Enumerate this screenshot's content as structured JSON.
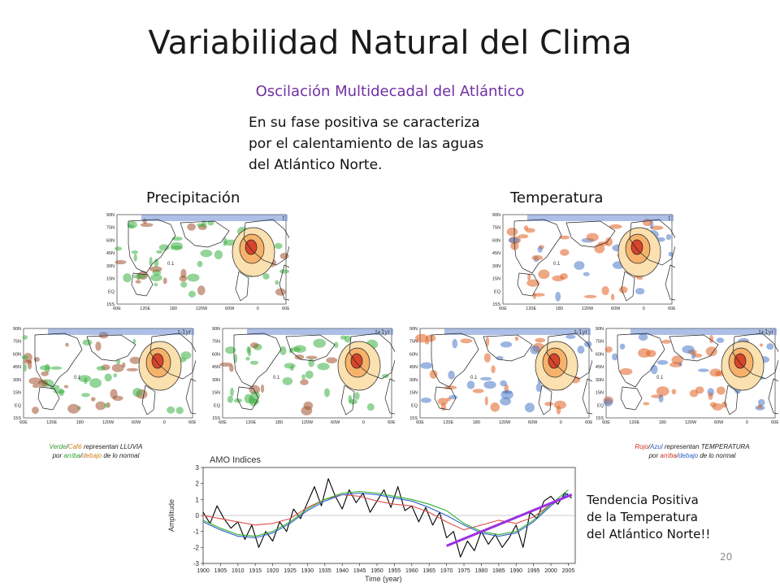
{
  "slide": {
    "title": "Variabilidad Natural del Clima",
    "subtitle": "Oscilación Multidecadal del Atlántico",
    "description": [
      "En su fase positiva se caracteriza",
      "por el calentamiento de las aguas",
      "del Atlántico Norte."
    ],
    "page_number": "20"
  },
  "precipitation": {
    "heading": "Precipitación",
    "legend_word1": "Verde",
    "legend_word2": "Café",
    "legend_rest1": "representan LLUVIA",
    "legend_word3": "arriba",
    "legend_word4": "debajo",
    "legend_prefix2": "por",
    "legend_rest2": "de lo normal",
    "colors": {
      "above": "#3cb043",
      "below": "#a0522d"
    }
  },
  "temperature": {
    "heading": "Temperatura",
    "legend_word1": "Rojo",
    "legend_word2": "Azul",
    "legend_rest1": "representan TEMPERATURA",
    "legend_word3": "arriba",
    "legend_word4": "debajo",
    "legend_prefix2": "por",
    "legend_rest2": "de lo normal",
    "colors": {
      "above": "#e06020",
      "below": "#4a78c8"
    }
  },
  "maps": {
    "lat_labels": [
      "90N",
      "75N",
      "60N",
      "45N",
      "30N",
      "15N",
      "EQ",
      "15S"
    ],
    "lon_labels": [
      "60E",
      "120E",
      "180",
      "120W",
      "60W",
      "0",
      "60E"
    ],
    "lag_labels": [
      "t",
      "t-1yr",
      "t+1yr"
    ],
    "contour_label": "0.1"
  },
  "trend_note": [
    "Tendencia Positiva",
    "de la Temperatura",
    "del Atlántico Norte!!"
  ],
  "chart_data": {
    "type": "line",
    "title": "AMO Indices",
    "xlabel": "Time (year)",
    "ylabel": "Amplitude",
    "xlim": [
      1900,
      2007
    ],
    "ylim": [
      -3,
      3
    ],
    "xticks": [
      1900,
      1905,
      1910,
      1915,
      1920,
      1925,
      1930,
      1935,
      1940,
      1945,
      1950,
      1955,
      1960,
      1965,
      1970,
      1975,
      1980,
      1985,
      1990,
      1995,
      2000,
      2005
    ],
    "yticks": [
      3,
      2,
      1,
      0,
      -1,
      -2,
      -3
    ],
    "series": [
      {
        "color": "#000000",
        "x": [
          1900,
          1902,
          1904,
          1906,
          1908,
          1910,
          1912,
          1914,
          1916,
          1918,
          1920,
          1922,
          1924,
          1926,
          1928,
          1930,
          1932,
          1934,
          1936,
          1938,
          1940,
          1942,
          1944,
          1946,
          1948,
          1950,
          1952,
          1954,
          1956,
          1958,
          1960,
          1962,
          1964,
          1966,
          1968,
          1970,
          1972,
          1974,
          1976,
          1978,
          1980,
          1982,
          1984,
          1986,
          1988,
          1990,
          1992,
          1994,
          1996,
          1998,
          2000,
          2002,
          2004,
          2006
        ],
        "y": [
          0.2,
          -0.5,
          0.6,
          -0.2,
          -0.8,
          -0.4,
          -1.5,
          -0.6,
          -2.0,
          -1.0,
          -1.6,
          -0.4,
          -1.0,
          0.4,
          -0.2,
          0.8,
          1.8,
          0.6,
          2.3,
          1.2,
          0.4,
          1.6,
          0.8,
          1.4,
          0.2,
          0.9,
          1.6,
          0.5,
          1.8,
          0.3,
          0.6,
          -0.4,
          0.5,
          -0.6,
          0.2,
          -1.4,
          -1.0,
          -2.6,
          -1.6,
          -2.2,
          -1.0,
          -1.8,
          -1.2,
          -2.0,
          -1.4,
          -0.6,
          -2.0,
          0.2,
          -0.2,
          0.9,
          1.2,
          0.7,
          1.4,
          1.1
        ]
      },
      {
        "color": "#e05050",
        "x": [
          1900,
          1905,
          1910,
          1915,
          1920,
          1925,
          1930,
          1935,
          1940,
          1945,
          1950,
          1955,
          1960,
          1965,
          1970,
          1975,
          1980,
          1985,
          1990,
          1995,
          2000,
          2005
        ],
        "y": [
          0.0,
          -0.2,
          -0.4,
          -0.6,
          -0.5,
          -0.2,
          0.5,
          1.0,
          1.3,
          1.2,
          0.9,
          0.7,
          0.6,
          0.2,
          -0.4,
          -0.9,
          -0.6,
          -0.3,
          -0.5,
          -0.1,
          0.7,
          1.2
        ]
      },
      {
        "color": "#30b030",
        "x": [
          1900,
          1905,
          1910,
          1915,
          1920,
          1925,
          1930,
          1935,
          1940,
          1945,
          1950,
          1955,
          1960,
          1965,
          1970,
          1975,
          1980,
          1985,
          1990,
          1995,
          2000,
          2005
        ],
        "y": [
          -0.3,
          -0.8,
          -1.2,
          -1.3,
          -1.0,
          -0.4,
          0.4,
          1.0,
          1.4,
          1.5,
          1.4,
          1.2,
          1.0,
          0.7,
          0.3,
          -0.5,
          -1.0,
          -1.2,
          -1.0,
          -0.3,
          0.7,
          1.6
        ]
      },
      {
        "color": "#3060d0",
        "x": [
          1900,
          1905,
          1910,
          1915,
          1920,
          1925,
          1930,
          1935,
          1940,
          1945,
          1950,
          1955,
          1960,
          1965,
          1970,
          1975,
          1980,
          1985,
          1990,
          1995,
          2000,
          2005
        ],
        "y": [
          -0.4,
          -0.9,
          -1.3,
          -1.4,
          -1.1,
          -0.5,
          0.3,
          0.9,
          1.3,
          1.4,
          1.3,
          1.1,
          0.9,
          0.5,
          0.0,
          -0.6,
          -1.1,
          -1.3,
          -1.1,
          -0.4,
          0.6,
          1.4
        ]
      },
      {
        "color": "#9b30e0",
        "x": [
          1970,
          2006
        ],
        "y": [
          -1.9,
          1.3
        ]
      }
    ]
  }
}
